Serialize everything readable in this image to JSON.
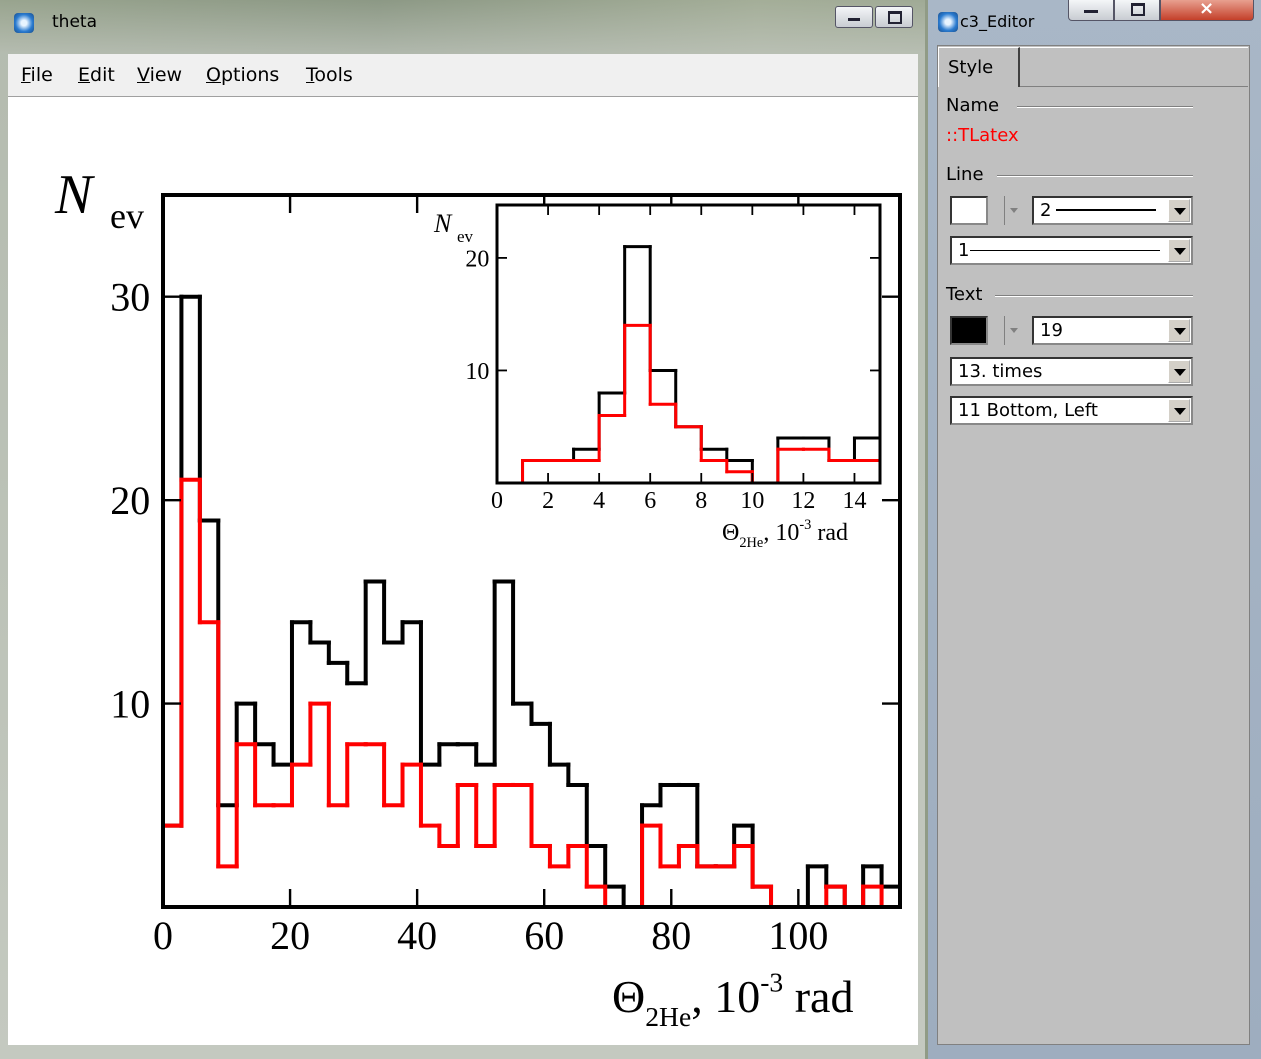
{
  "window": {
    "title": "theta",
    "menu": [
      "File",
      "Edit",
      "View",
      "Options",
      "Tools"
    ]
  },
  "editor": {
    "title": "c3_Editor",
    "tab": "Style",
    "name_label": "Name",
    "name_value": "::TLatex",
    "line_label": "Line",
    "line_width": "2",
    "line_style": "1",
    "text_label": "Text",
    "text_size": "19",
    "text_font": "13. times",
    "text_align": "11 Bottom, Left"
  },
  "chart_data": [
    {
      "type": "histogram",
      "ylabel": {
        "symbol": "N",
        "subscript": "ev"
      },
      "xlabel": {
        "symbol": "Θ",
        "subscript": "2He",
        "text": ", 10",
        "superscript": "-3",
        "unit": "rad"
      },
      "bins": [
        0,
        2.9,
        5.8,
        8.7,
        11.6,
        14.5,
        17.4,
        20.3,
        23.2,
        26.1,
        29,
        31.9,
        34.8,
        37.7,
        40.6,
        43.5,
        46.4,
        49.3,
        52.2,
        55.1,
        58,
        60.9,
        63.8,
        66.7,
        69.6,
        72.5,
        75.4,
        78.3,
        81.2,
        84.1,
        87,
        89.9,
        92.8,
        95.7,
        98.6,
        101.5,
        104.4,
        107.3,
        110.2,
        113.1,
        116
      ],
      "series": [
        {
          "color": "#000000",
          "values": [
            4,
            30,
            19,
            5,
            10,
            8,
            7,
            14,
            13,
            12,
            11,
            16,
            13,
            14,
            7,
            8,
            8,
            7,
            16,
            10,
            9,
            7,
            6,
            3,
            1,
            0,
            5,
            6,
            6,
            2,
            2,
            4,
            1,
            0,
            0,
            2,
            1,
            0,
            2,
            1
          ]
        },
        {
          "color": "#ff0000",
          "values": [
            4,
            21,
            14,
            2,
            8,
            5,
            5,
            7,
            10,
            5,
            8,
            8,
            5,
            7,
            4,
            3,
            6,
            3,
            6,
            6,
            3,
            2,
            3,
            1,
            0,
            0,
            4,
            2,
            3,
            2,
            2,
            3,
            1,
            0,
            0,
            0,
            1,
            0,
            1,
            0
          ]
        }
      ],
      "xlim": [
        0,
        116
      ],
      "ylim": [
        0,
        35
      ],
      "xticks": [
        0,
        20,
        40,
        60,
        80,
        100
      ],
      "yticks": [
        10,
        20,
        30
      ]
    },
    {
      "type": "histogram",
      "ylabel": {
        "symbol": "N",
        "subscript": "ev"
      },
      "xlabel": {
        "symbol": "Θ",
        "subscript": "2He",
        "text": ", 10",
        "superscript": "-3",
        "unit": "rad"
      },
      "bins": [
        0,
        1,
        2,
        3,
        4,
        5,
        6,
        7,
        8,
        9,
        10,
        11,
        12,
        13,
        14,
        15
      ],
      "series": [
        {
          "color": "#000000",
          "values": [
            0,
            2,
            2,
            3,
            8,
            21,
            10,
            5,
            3,
            2,
            0,
            4,
            4,
            2,
            4
          ]
        },
        {
          "color": "#ff0000",
          "values": [
            0,
            2,
            2,
            2,
            6,
            14,
            7,
            5,
            2,
            1,
            0,
            3,
            3,
            2,
            2
          ]
        }
      ],
      "xlim": [
        0,
        15
      ],
      "ylim": [
        0,
        24.7
      ],
      "xticks": [
        0,
        2,
        4,
        6,
        8,
        10,
        12,
        14
      ],
      "yticks": [
        10,
        20
      ]
    }
  ]
}
